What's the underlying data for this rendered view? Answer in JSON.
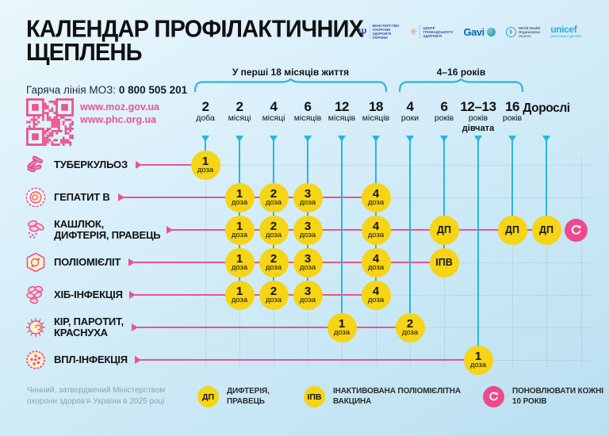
{
  "title_line1": "КАЛЕНДАР ПРОФІЛАКТИЧНИХ",
  "title_line2": "ЩЕПЛЕНЬ",
  "hotline": {
    "label": "Гаряча лінія МОЗ:",
    "number": "0 800 505 201"
  },
  "links": {
    "moz": "www.moz.gov.ua",
    "phc": "www.phc.org.ua"
  },
  "logos": {
    "moz": {
      "l1": "МІНІСТЕРСТВО",
      "l2": "ОХОРОНИ",
      "l3": "ЗДОРОВ'Я",
      "l4": "УКРАЇНИ"
    },
    "phc": {
      "l1": "ЦЕНТР",
      "l2": "ГРОМАДСЬКОГО",
      "l3": "ЗДОРОВ'Я"
    },
    "gavi": {
      "name": "Gavi"
    },
    "who": {
      "l1": "World Health",
      "l2": "Organization",
      "l3": "Україна"
    },
    "unicef": {
      "name": "unicef",
      "tagline": "для кожної дитини"
    }
  },
  "age_groups": [
    {
      "label": "У перші 18 місяців життя",
      "from_col": 0,
      "to_col": 5
    },
    {
      "label": "4–16 років",
      "from_col": 6,
      "to_col": 9
    }
  ],
  "columns": [
    {
      "num": "2",
      "unit": "доба"
    },
    {
      "num": "2",
      "unit": "місяці"
    },
    {
      "num": "4",
      "unit": "місяці"
    },
    {
      "num": "6",
      "unit": "місяців"
    },
    {
      "num": "12",
      "unit": "місяців"
    },
    {
      "num": "18",
      "unit": "місяців"
    },
    {
      "num": "4",
      "unit": "роки"
    },
    {
      "num": "6",
      "unit": "років"
    },
    {
      "num": "12–13",
      "unit": "років",
      "extra": "дівчата"
    },
    {
      "num": "16",
      "unit": "років"
    },
    {
      "num": "Дорослі",
      "unit": "",
      "adult": true
    }
  ],
  "rows": [
    {
      "label": [
        "ТУБЕРКУЛЬОЗ"
      ],
      "icon": "tuberculosis-icon",
      "doses": [
        {
          "col": 0,
          "text": "1",
          "sub": "доза"
        }
      ]
    },
    {
      "label": [
        "ГЕПАТИТ В"
      ],
      "icon": "hepatitis-b-icon",
      "doses": [
        {
          "col": 1,
          "text": "1",
          "sub": "доза"
        },
        {
          "col": 2,
          "text": "2",
          "sub": "доза"
        },
        {
          "col": 3,
          "text": "3",
          "sub": "доза"
        },
        {
          "col": 5,
          "text": "4",
          "sub": "доза"
        }
      ]
    },
    {
      "label": [
        "КАШЛЮК,",
        "ДИФТЕРІЯ, ПРАВЕЦЬ"
      ],
      "icon": "pertussis-diphtheria-tetanus-icon",
      "repeat_icon": true,
      "doses": [
        {
          "col": 1,
          "text": "1",
          "sub": "доза"
        },
        {
          "col": 2,
          "text": "2",
          "sub": "доза"
        },
        {
          "col": 3,
          "text": "3",
          "sub": "доза"
        },
        {
          "col": 5,
          "text": "4",
          "sub": "доза"
        },
        {
          "col": 7,
          "text": "ДП"
        },
        {
          "col": 9,
          "text": "ДП"
        },
        {
          "col": 10,
          "text": "ДП"
        }
      ]
    },
    {
      "label": [
        "ПОЛІОМІЄЛІТ"
      ],
      "icon": "polio-icon",
      "doses": [
        {
          "col": 1,
          "text": "1",
          "sub": "доза"
        },
        {
          "col": 2,
          "text": "2",
          "sub": "доза"
        },
        {
          "col": 3,
          "text": "3",
          "sub": "доза"
        },
        {
          "col": 5,
          "text": "4",
          "sub": "доза"
        },
        {
          "col": 7,
          "text": "ІПВ"
        }
      ]
    },
    {
      "label": [
        "ХІБ-ІНФЕКЦІЯ"
      ],
      "icon": "hib-icon",
      "doses": [
        {
          "col": 1,
          "text": "1",
          "sub": "доза"
        },
        {
          "col": 2,
          "text": "2",
          "sub": "доза"
        },
        {
          "col": 3,
          "text": "3",
          "sub": "доза"
        },
        {
          "col": 5,
          "text": "4",
          "sub": "доза"
        }
      ]
    },
    {
      "label": [
        "КІР, ПАРОТИТ,",
        "КРАСНУХА"
      ],
      "icon": "measles-mumps-rubella-icon",
      "doses": [
        {
          "col": 4,
          "text": "1",
          "sub": "доза"
        },
        {
          "col": 6,
          "text": "2",
          "sub": "доза"
        }
      ]
    },
    {
      "label": [
        "ВПЛ-ІНФЕКЦІЯ"
      ],
      "icon": "hpv-icon",
      "doses": [
        {
          "col": 8,
          "text": "1",
          "sub": "доза"
        }
      ]
    }
  ],
  "legend": {
    "dp": {
      "badge": "ДП",
      "text": "ДИФТЕРІЯ, ПРАВЕЦЬ"
    },
    "ipv": {
      "badge": "ІПВ",
      "text": "ІНАКТИВОВАНА ПОЛІОМІЄЛІТНА ВАКЦИНА"
    },
    "repeat": {
      "line1": "ПОНОВЛЮВАТИ КОЖНІ",
      "line2": "10 РОКІВ"
    }
  },
  "footer_note_line1": "Чинний, затверджений Міністерством",
  "footer_note_line2": "охорони здоров'я України в 2025 році",
  "colors": {
    "accent_pink": "#e9548c",
    "accent_cyan": "#2bb4e2",
    "dose_yellow": "#f6d416",
    "repeat_pink": "#ee4a8b"
  }
}
